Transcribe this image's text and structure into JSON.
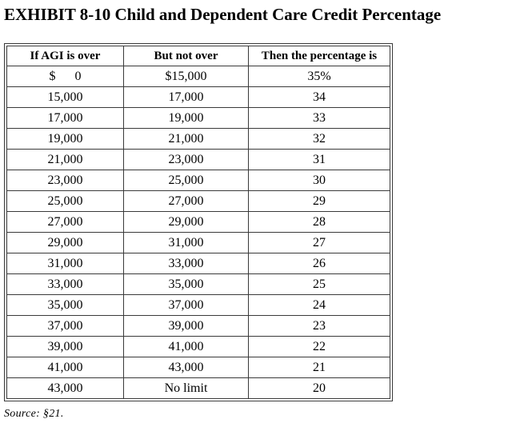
{
  "title": "EXHIBIT 8-10 Child and Dependent Care Credit Percentage",
  "source": "Source: §21.",
  "colors": {
    "border": "#3a3a3a",
    "text": "#000000",
    "background": "#ffffff"
  },
  "chart_data": {
    "type": "table",
    "title": "EXHIBIT 8-10 Child and Dependent Care Credit Percentage",
    "columns": [
      "If AGI is over",
      "But not over",
      "Then the percentage is"
    ],
    "rows": [
      [
        "$      0",
        "$15,000",
        "35%"
      ],
      [
        "15,000",
        "17,000",
        "34"
      ],
      [
        "17,000",
        "19,000",
        "33"
      ],
      [
        "19,000",
        "21,000",
        "32"
      ],
      [
        "21,000",
        "23,000",
        "31"
      ],
      [
        "23,000",
        "25,000",
        "30"
      ],
      [
        "25,000",
        "27,000",
        "29"
      ],
      [
        "27,000",
        "29,000",
        "28"
      ],
      [
        "29,000",
        "31,000",
        "27"
      ],
      [
        "31,000",
        "33,000",
        "26"
      ],
      [
        "33,000",
        "35,000",
        "25"
      ],
      [
        "35,000",
        "37,000",
        "24"
      ],
      [
        "37,000",
        "39,000",
        "23"
      ],
      [
        "39,000",
        "41,000",
        "22"
      ],
      [
        "41,000",
        "43,000",
        "21"
      ],
      [
        "43,000",
        "No limit",
        "20"
      ]
    ]
  }
}
